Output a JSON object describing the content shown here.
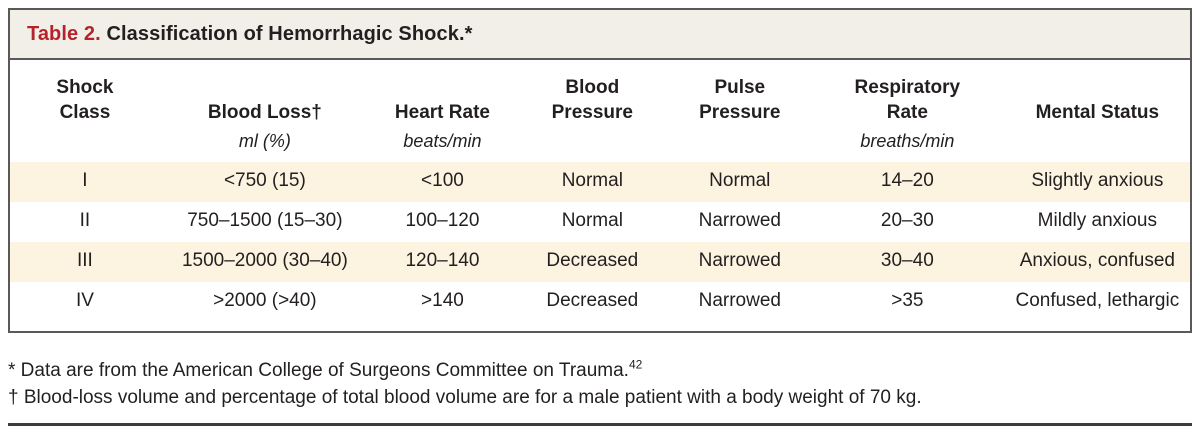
{
  "title": {
    "label": "Table 2.",
    "text": "Classification of Hemorrhagic Shock.*"
  },
  "table": {
    "columns": [
      {
        "header": [
          "Shock",
          "Class"
        ],
        "unit": ""
      },
      {
        "header": [
          "Blood Loss†"
        ],
        "unit": "ml (%)"
      },
      {
        "header": [
          "Heart Rate"
        ],
        "unit": "beats/min"
      },
      {
        "header": [
          "Blood",
          "Pressure"
        ],
        "unit": ""
      },
      {
        "header": [
          "Pulse",
          "Pressure"
        ],
        "unit": ""
      },
      {
        "header": [
          "Respiratory",
          "Rate"
        ],
        "unit": "breaths/min"
      },
      {
        "header": [
          "Mental Status"
        ],
        "unit": ""
      }
    ],
    "rows": [
      [
        "I",
        "<750 (15)",
        "<100",
        "Normal",
        "Normal",
        "14–20",
        "Slightly anxious"
      ],
      [
        "II",
        "750–1500 (15–30)",
        "100–120",
        "Normal",
        "Narrowed",
        "20–30",
        "Mildly anxious"
      ],
      [
        "III",
        "1500–2000 (30–40)",
        "120–140",
        "Decreased",
        "Narrowed",
        "30–40",
        "Anxious, confused"
      ],
      [
        "IV",
        ">2000 (>40)",
        ">140",
        "Decreased",
        "Narrowed",
        ">35",
        "Confused, lethargic"
      ]
    ]
  },
  "footnotes": [
    {
      "text": "* Data are from the American College of Surgeons Committee on Trauma.",
      "sup": "42"
    },
    {
      "text": "† Blood-loss volume and percentage of total blood volume are for a male patient with a body weight of 70 kg.",
      "sup": ""
    }
  ],
  "colors": {
    "title_label_red": "#b5242b",
    "title_bar_background": "#f1efe8",
    "shaded_row_background": "#fcf4e0",
    "frame_border": "#595959",
    "text": "#231f20"
  }
}
